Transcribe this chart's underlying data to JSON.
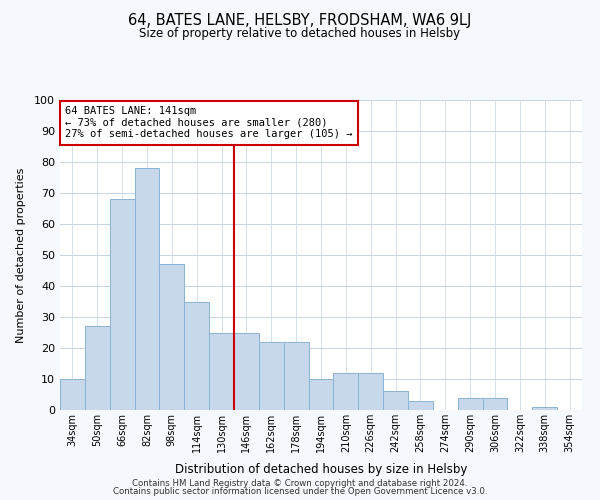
{
  "title": "64, BATES LANE, HELSBY, FRODSHAM, WA6 9LJ",
  "subtitle": "Size of property relative to detached houses in Helsby",
  "xlabel": "Distribution of detached houses by size in Helsby",
  "ylabel": "Number of detached properties",
  "bar_color": "#c8d8ec",
  "bar_edge_color": "#8ab4d4",
  "vline_color": "#cc0000",
  "annotation_title": "64 BATES LANE: 141sqm",
  "annotation_line1": "← 73% of detached houses are smaller (280)",
  "annotation_line2": "27% of semi-detached houses are larger (105) →",
  "annotation_box_color": "#ffffff",
  "annotation_box_edge": "#cc0000",
  "categories": [
    "34sqm",
    "50sqm",
    "66sqm",
    "82sqm",
    "98sqm",
    "114sqm",
    "130sqm",
    "146sqm",
    "162sqm",
    "178sqm",
    "194sqm",
    "210sqm",
    "226sqm",
    "242sqm",
    "258sqm",
    "274sqm",
    "290sqm",
    "306sqm",
    "322sqm",
    "338sqm",
    "354sqm"
  ],
  "values": [
    10,
    27,
    68,
    78,
    47,
    35,
    25,
    25,
    22,
    22,
    10,
    12,
    12,
    6,
    3,
    0,
    4,
    4,
    0,
    1,
    0
  ],
  "vline_index": 7,
  "ylim": [
    0,
    100
  ],
  "yticks": [
    0,
    10,
    20,
    30,
    40,
    50,
    60,
    70,
    80,
    90,
    100
  ],
  "footer1": "Contains HM Land Registry data © Crown copyright and database right 2024.",
  "footer2": "Contains public sector information licensed under the Open Government Licence v3.0.",
  "bg_color": "#f5f8fc",
  "plot_bg_color": "#ffffff",
  "grid_color": "#c8d4e0"
}
